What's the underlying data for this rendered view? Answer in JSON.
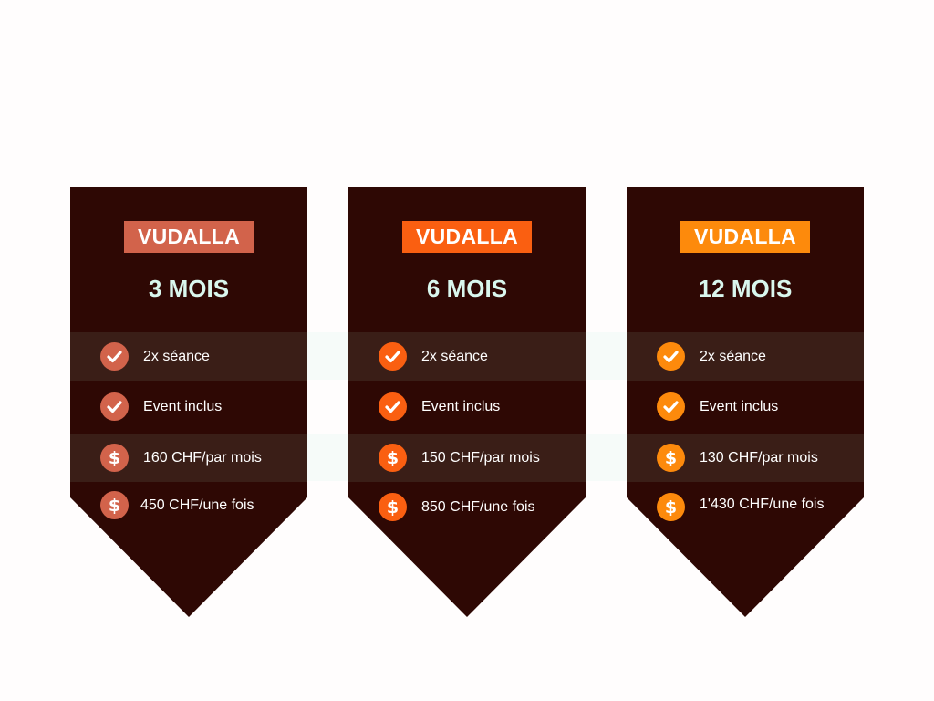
{
  "plans": [
    {
      "name": "VUDALLA",
      "duration": "3 MOIS",
      "accent": "#d2634b",
      "features": [
        {
          "icon": "check-icon",
          "text": "2x séance"
        },
        {
          "icon": "check-icon",
          "text": "Event inclus"
        },
        {
          "icon": "dollar-icon",
          "text": "160 CHF/par mois"
        },
        {
          "icon": "dollar-icon",
          "text": "450 CHF/une fois"
        }
      ]
    },
    {
      "name": "VUDALLA",
      "duration": "6 MOIS",
      "accent": "#fa5f11",
      "features": [
        {
          "icon": "check-icon",
          "text": "2x séance"
        },
        {
          "icon": "check-icon",
          "text": "Event inclus"
        },
        {
          "icon": "dollar-icon",
          "text": "150 CHF/par mois"
        },
        {
          "icon": "dollar-icon",
          "text": "850 CHF/une fois"
        }
      ]
    },
    {
      "name": "VUDALLA",
      "duration": "12 MOIS",
      "accent": "#fd8a0c",
      "features": [
        {
          "icon": "check-icon",
          "text": "2x séance"
        },
        {
          "icon": "check-icon",
          "text": "Event inclus"
        },
        {
          "icon": "dollar-icon",
          "text": "130 CHF/par mois"
        },
        {
          "icon": "dollar-icon",
          "text": "1'430 CHF/une fois"
        }
      ]
    }
  ],
  "colors": {
    "card_background": "#2e0804",
    "row_shade": "#3a1e17",
    "duration_text": "#d9f7ee",
    "page_background": "#fffdfd"
  }
}
